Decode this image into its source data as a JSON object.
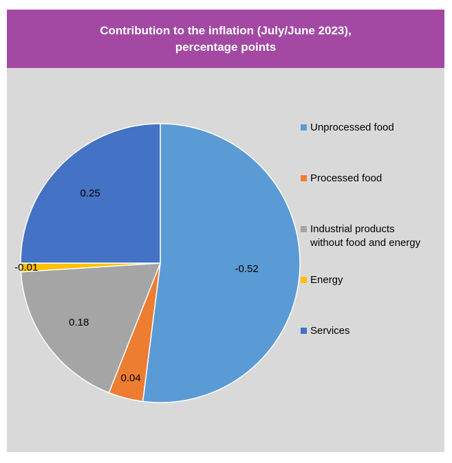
{
  "chart_data": {
    "type": "pie",
    "title_lines": [
      "Contribution to the inflation (July/June 2023),",
      "percentage points"
    ],
    "series": [
      {
        "name": "Unprocessed food",
        "value": -0.52,
        "label": "-0.52",
        "color": "#5b9bd5"
      },
      {
        "name": "Processed food",
        "value": 0.04,
        "label": "0.04",
        "color": "#ed7d31"
      },
      {
        "name": "Industrial products without food and energy",
        "value": 0.18,
        "label": "0.18",
        "color": "#a5a5a5"
      },
      {
        "name": "Energy",
        "value": -0.01,
        "label": "-0.01",
        "color": "#ffc000"
      },
      {
        "name": "Services",
        "value": 0.25,
        "label": "0.25",
        "color": "#4472c4"
      }
    ],
    "legend": {
      "position": "right",
      "items": [
        {
          "text": "Unprocessed food",
          "color": "#5b9bd5"
        },
        {
          "text": "Processed food",
          "color": "#ed7d31"
        },
        {
          "text": "Industrial products\nwithout food and energy",
          "color": "#a5a5a5"
        },
        {
          "text": "Energy",
          "color": "#ffc000"
        },
        {
          "text": "Services",
          "color": "#4472c4"
        }
      ]
    }
  }
}
